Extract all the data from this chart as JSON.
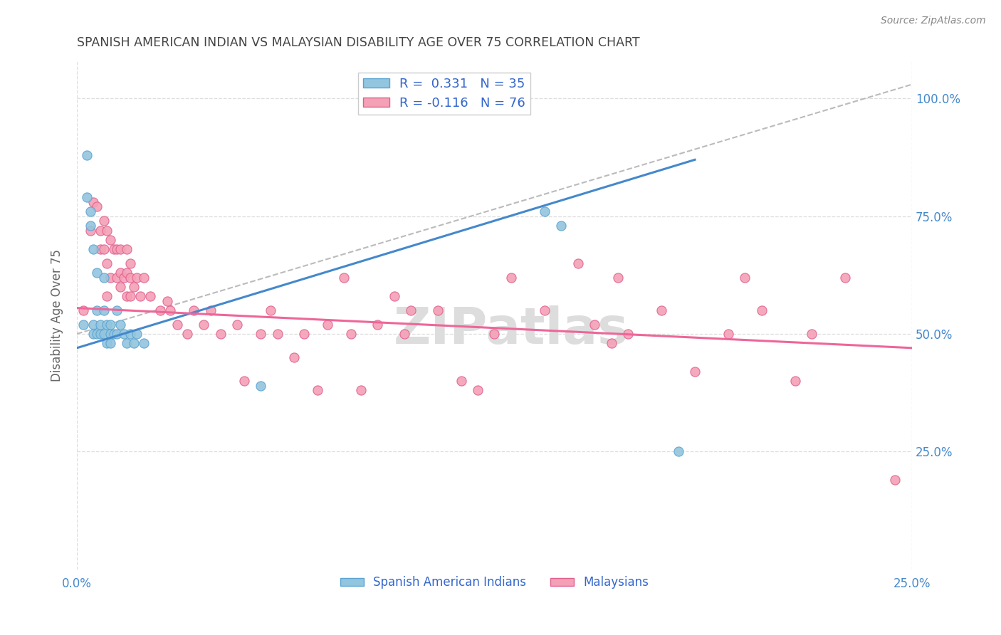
{
  "title": "SPANISH AMERICAN INDIAN VS MALAYSIAN DISABILITY AGE OVER 75 CORRELATION CHART",
  "source": "Source: ZipAtlas.com",
  "ylabel": "Disability Age Over 75",
  "r_blue": 0.331,
  "n_blue": 35,
  "r_pink": -0.116,
  "n_pink": 76,
  "blue_color": "#92c5de",
  "blue_edge_color": "#5ba3d0",
  "pink_color": "#f4a0b5",
  "pink_edge_color": "#e06090",
  "blue_line_color": "#4488cc",
  "pink_line_color": "#ee6699",
  "dashed_line_color": "#bbbbbb",
  "title_color": "#444444",
  "right_label_color": "#4488cc",
  "legend_label_color": "#3366cc",
  "axis_label_color": "#4488cc",
  "xlim": [
    0.0,
    0.25
  ],
  "ylim": [
    0.0,
    1.08
  ],
  "blue_line_x": [
    0.0,
    0.185
  ],
  "blue_line_y": [
    0.47,
    0.87
  ],
  "pink_line_x": [
    0.0,
    0.25
  ],
  "pink_line_y": [
    0.555,
    0.47
  ],
  "dashed_line_x": [
    0.0,
    0.25
  ],
  "dashed_line_y": [
    0.5,
    1.03
  ],
  "blue_scatter_x": [
    0.002,
    0.003,
    0.003,
    0.004,
    0.004,
    0.005,
    0.005,
    0.005,
    0.006,
    0.006,
    0.006,
    0.007,
    0.007,
    0.008,
    0.008,
    0.008,
    0.009,
    0.009,
    0.01,
    0.01,
    0.01,
    0.011,
    0.012,
    0.012,
    0.013,
    0.014,
    0.015,
    0.016,
    0.017,
    0.018,
    0.02,
    0.055,
    0.14,
    0.145,
    0.18
  ],
  "blue_scatter_y": [
    0.52,
    0.88,
    0.79,
    0.76,
    0.73,
    0.68,
    0.52,
    0.5,
    0.63,
    0.55,
    0.5,
    0.52,
    0.5,
    0.62,
    0.55,
    0.5,
    0.52,
    0.48,
    0.52,
    0.5,
    0.48,
    0.5,
    0.55,
    0.5,
    0.52,
    0.5,
    0.48,
    0.5,
    0.48,
    0.5,
    0.48,
    0.39,
    0.76,
    0.73,
    0.25
  ],
  "pink_scatter_x": [
    0.002,
    0.004,
    0.005,
    0.006,
    0.007,
    0.007,
    0.008,
    0.008,
    0.009,
    0.009,
    0.009,
    0.01,
    0.01,
    0.011,
    0.012,
    0.012,
    0.013,
    0.013,
    0.013,
    0.014,
    0.015,
    0.015,
    0.015,
    0.016,
    0.016,
    0.016,
    0.017,
    0.018,
    0.019,
    0.02,
    0.022,
    0.025,
    0.027,
    0.028,
    0.03,
    0.033,
    0.035,
    0.038,
    0.04,
    0.043,
    0.048,
    0.05,
    0.055,
    0.058,
    0.06,
    0.065,
    0.068,
    0.072,
    0.075,
    0.08,
    0.082,
    0.085,
    0.09,
    0.095,
    0.098,
    0.1,
    0.108,
    0.115,
    0.12,
    0.125,
    0.13,
    0.14,
    0.15,
    0.155,
    0.16,
    0.162,
    0.165,
    0.175,
    0.185,
    0.195,
    0.2,
    0.205,
    0.215,
    0.22,
    0.23,
    0.245
  ],
  "pink_scatter_y": [
    0.55,
    0.72,
    0.78,
    0.77,
    0.72,
    0.68,
    0.74,
    0.68,
    0.72,
    0.65,
    0.58,
    0.7,
    0.62,
    0.68,
    0.68,
    0.62,
    0.68,
    0.63,
    0.6,
    0.62,
    0.68,
    0.63,
    0.58,
    0.65,
    0.62,
    0.58,
    0.6,
    0.62,
    0.58,
    0.62,
    0.58,
    0.55,
    0.57,
    0.55,
    0.52,
    0.5,
    0.55,
    0.52,
    0.55,
    0.5,
    0.52,
    0.4,
    0.5,
    0.55,
    0.5,
    0.45,
    0.5,
    0.38,
    0.52,
    0.62,
    0.5,
    0.38,
    0.52,
    0.58,
    0.5,
    0.55,
    0.55,
    0.4,
    0.38,
    0.5,
    0.62,
    0.55,
    0.65,
    0.52,
    0.48,
    0.62,
    0.5,
    0.55,
    0.42,
    0.5,
    0.62,
    0.55,
    0.4,
    0.5,
    0.62,
    0.19
  ],
  "ytick_vals": [
    0.25,
    0.5,
    0.75,
    1.0
  ],
  "ytick_labels": [
    "25.0%",
    "50.0%",
    "75.0%",
    "100.0%"
  ],
  "watermark_text": "ZIPatlas",
  "watermark_color": "#dddddd",
  "legend_bottom_labels": [
    "Spanish American Indians",
    "Malaysians"
  ]
}
